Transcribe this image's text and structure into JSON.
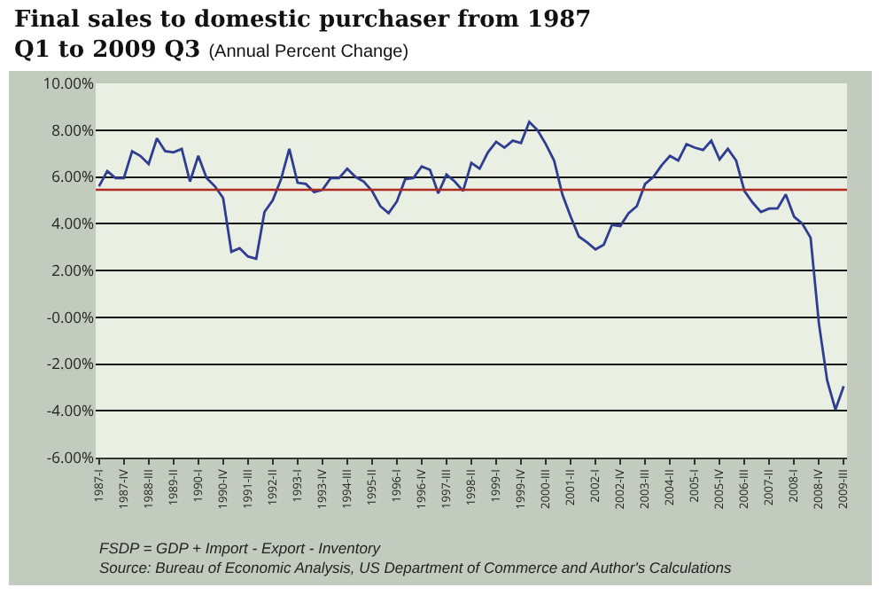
{
  "chart_data": {
    "type": "line",
    "title": "Final sales to domestic purchaser from 1987 Q1 to 2009 Q3",
    "subtitle": "(Annual Percent Change)",
    "categories": [
      "1987-I",
      null,
      null,
      "1987-IV",
      null,
      null,
      "1988-III",
      null,
      null,
      "1989-II",
      null,
      null,
      "1990-I",
      null,
      null,
      "1990-IV",
      null,
      null,
      "1991-III",
      null,
      null,
      "1992-II",
      null,
      null,
      "1993-I",
      null,
      null,
      "1993-IV",
      null,
      null,
      "1994-III",
      null,
      null,
      "1995-II",
      null,
      null,
      "1996-I",
      null,
      null,
      "1996-IV",
      null,
      null,
      "1997-III",
      null,
      null,
      "1998-II",
      null,
      null,
      "1999-I",
      null,
      null,
      "1999-IV",
      null,
      null,
      "2000-III",
      null,
      null,
      "2001-II",
      null,
      null,
      "2002-I",
      null,
      null,
      "2002-IV",
      null,
      null,
      "2003-III",
      null,
      null,
      "2004-II",
      null,
      null,
      "2005-I",
      null,
      null,
      "2005-IV",
      null,
      null,
      "2006-III",
      null,
      null,
      "2007-II",
      null,
      null,
      "2008-I",
      null,
      null,
      "2008-IV",
      null,
      null,
      "2009-III"
    ],
    "series": [
      {
        "color": "#2e3d8f",
        "values": [
          5.6,
          6.25,
          5.95,
          5.95,
          7.1,
          6.9,
          6.55,
          7.65,
          7.1,
          7.05,
          7.2,
          5.8,
          6.9,
          5.95,
          5.6,
          5.1,
          2.8,
          2.95,
          2.6,
          2.5,
          4.5,
          5.0,
          5.9,
          7.2,
          5.75,
          5.7,
          5.35,
          5.45,
          5.95,
          5.95,
          6.35,
          6.0,
          5.8,
          5.4,
          4.75,
          4.45,
          4.95,
          5.9,
          5.95,
          6.45,
          6.3,
          5.3,
          6.1,
          5.8,
          5.4,
          6.6,
          6.35,
          7.05,
          7.5,
          7.25,
          7.55,
          7.45,
          8.35,
          8.0,
          7.4,
          6.7,
          5.25,
          4.3,
          3.45,
          3.2,
          2.9,
          3.1,
          3.95,
          3.9,
          4.45,
          4.75,
          5.7,
          6.0,
          6.5,
          6.9,
          6.7,
          7.4,
          7.25,
          7.15,
          7.55,
          6.75,
          7.2,
          6.7,
          5.4,
          4.9,
          4.5,
          4.65,
          4.65,
          5.25,
          4.3,
          4.0,
          3.4,
          -0.25,
          -2.7,
          -3.95,
          -2.95
        ]
      }
    ],
    "ylim": [
      -6,
      10
    ],
    "yticks": [
      {
        "value": -6,
        "label": "-6.00%"
      },
      {
        "value": -4,
        "label": "-4.00%"
      },
      {
        "value": -2,
        "label": "-2.00%"
      },
      {
        "value": 0,
        "label": "-0.00%"
      },
      {
        "value": 2,
        "label": "2.00%"
      },
      {
        "value": 4,
        "label": "4.00%"
      },
      {
        "value": 6,
        "label": "6.00%"
      },
      {
        "value": 8,
        "label": "8.00%"
      },
      {
        "value": 10,
        "label": "10.00%"
      }
    ],
    "grid": "y",
    "ref_lines": [
      {
        "axis": "y",
        "value": 5.45,
        "color": "#b02a20"
      }
    ],
    "annotations": [
      "FSDP = GDP + Import - Export - Inventory",
      "Source: Bureau of Economic Analysis, US Department of Commerce and Author's Calculations"
    ]
  }
}
